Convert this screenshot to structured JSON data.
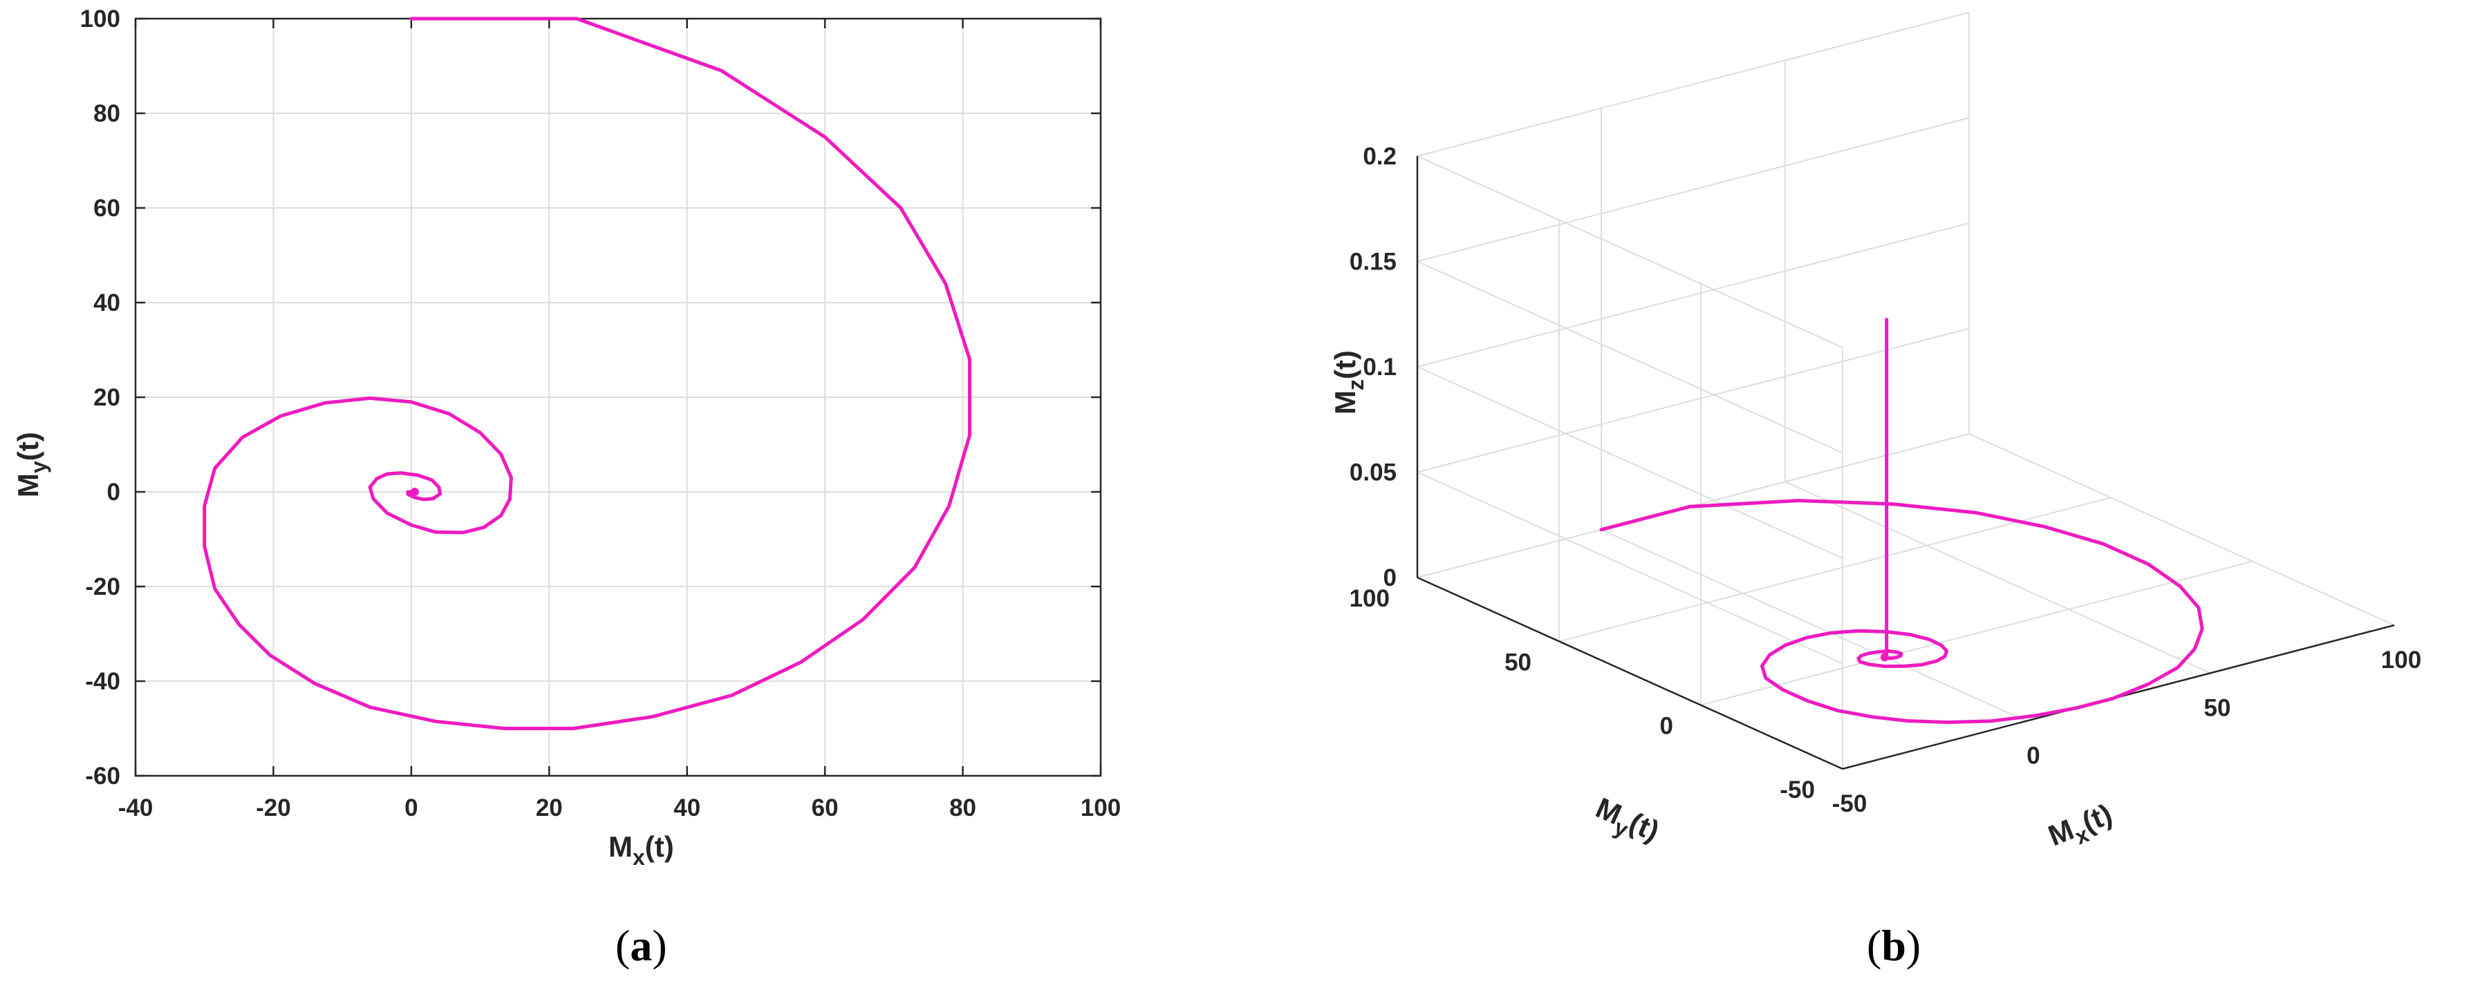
{
  "chart_data": [
    {
      "type": "line",
      "caption": "(a)",
      "xlabel": "M_x(t)",
      "ylabel": "M_y(t)",
      "xlim": [
        -40,
        100
      ],
      "ylim": [
        -60,
        100
      ],
      "xticks": [
        "-40",
        "-20",
        "0",
        "20",
        "40",
        "60",
        "80",
        "100"
      ],
      "yticks": [
        "-60",
        "-40",
        "-20",
        "0",
        "20",
        "40",
        "60",
        "80",
        "100"
      ],
      "grid": true,
      "color": "#ee1bc0",
      "series": [
        {
          "x": [
            0,
            24,
            45,
            60,
            71,
            77.5,
            81,
            81,
            78,
            73,
            65.5,
            56.5,
            46.5,
            35,
            23.5,
            13.5,
            3.5,
            -6,
            -14,
            -20.5,
            -25,
            -28.5,
            -30,
            -30,
            -28.5,
            -24.5,
            -19,
            -12.5,
            -6,
            0,
            5.5,
            10,
            13,
            14.5,
            14.3,
            13,
            10.5,
            7.5,
            3.5,
            0,
            -3.5,
            -5.5,
            -6,
            -5,
            -3.5,
            -1.5,
            1,
            3,
            4,
            4.2,
            3.2,
            1.8,
            0.5,
            -0.5,
            -0.5,
            0.5
          ],
          "y": [
            100,
            100,
            89,
            75,
            60,
            44,
            28,
            12,
            -3,
            -16,
            -27,
            -36,
            -43,
            -47.5,
            -50,
            -50,
            -48.5,
            -45.5,
            -40.5,
            -34.5,
            -28,
            -20.5,
            -11.5,
            -3,
            5,
            11.5,
            16,
            18.8,
            19.8,
            19,
            16.5,
            12.5,
            8,
            3,
            -1.5,
            -5,
            -7.5,
            -8.6,
            -8.5,
            -7,
            -4.5,
            -1.5,
            1,
            2.8,
            3.8,
            4,
            3.5,
            2.5,
            1,
            -0.4,
            -1.4,
            -1.6,
            -1.2,
            -0.5,
            0,
            0
          ]
        }
      ]
    },
    {
      "type": "line",
      "caption": "(b)",
      "xlabel": "M_x(t)",
      "ylabel": "M_y(t)",
      "zlabel": "M_z(t)",
      "xlim": [
        -50,
        100
      ],
      "ylim": [
        -50,
        100
      ],
      "zlim": [
        0,
        0.2
      ],
      "xticks": [
        "-50",
        "0",
        "50",
        "100"
      ],
      "yticks": [
        "-50",
        "0",
        "50",
        "100"
      ],
      "zticks": [
        "0",
        "0.05",
        "0.1",
        "0.15",
        "0.2"
      ],
      "grid": true,
      "color": "#ee1bc0",
      "series": [
        {
          "x": [
            0,
            24,
            45,
            60,
            71,
            77.5,
            81,
            81,
            78,
            73,
            65.5,
            56.5,
            46.5,
            35,
            23.5,
            13.5,
            3.5,
            -6,
            -14,
            -20.5,
            -25,
            -28.5,
            -30,
            -30,
            -28.5,
            -24.5,
            -19,
            -12.5,
            -6,
            0,
            5.5,
            10,
            13,
            14.5,
            14.3,
            13,
            10.5,
            7.5,
            3.5,
            0,
            -3.5,
            -5.5,
            -6,
            -5,
            -3.5,
            -1.5,
            1,
            3,
            4,
            4.2,
            3.2,
            1.8,
            0.5,
            -0.5,
            -0.5,
            0.5,
            0.5
          ],
          "y": [
            100,
            100,
            89,
            75,
            60,
            44,
            28,
            12,
            -3,
            -16,
            -27,
            -36,
            -43,
            -47.5,
            -50,
            -50,
            -48.5,
            -45.5,
            -40.5,
            -34.5,
            -28,
            -20.5,
            -11.5,
            -3,
            5,
            11.5,
            16,
            18.8,
            19.8,
            19,
            16.5,
            12.5,
            8,
            3,
            -1.5,
            -5,
            -7.5,
            -8.6,
            -8.5,
            -7,
            -4.5,
            -1.5,
            1,
            2.8,
            3.8,
            4,
            3.5,
            2.5,
            1,
            -0.4,
            -1.4,
            -1.6,
            -1.2,
            -0.5,
            0,
            0,
            0
          ],
          "z": [
            0,
            0,
            0,
            0,
            0,
            0,
            0,
            0,
            0,
            0,
            0,
            0,
            0,
            0,
            0,
            0,
            0,
            0,
            0,
            0,
            0,
            0,
            0,
            0,
            0,
            0,
            0,
            0,
            0,
            0,
            0,
            0,
            0,
            0,
            0,
            0,
            0,
            0,
            0,
            0,
            0,
            0,
            0,
            0,
            0,
            0,
            0,
            0,
            0,
            0,
            0,
            0,
            0,
            0,
            0,
            0,
            0.16
          ]
        }
      ]
    }
  ]
}
